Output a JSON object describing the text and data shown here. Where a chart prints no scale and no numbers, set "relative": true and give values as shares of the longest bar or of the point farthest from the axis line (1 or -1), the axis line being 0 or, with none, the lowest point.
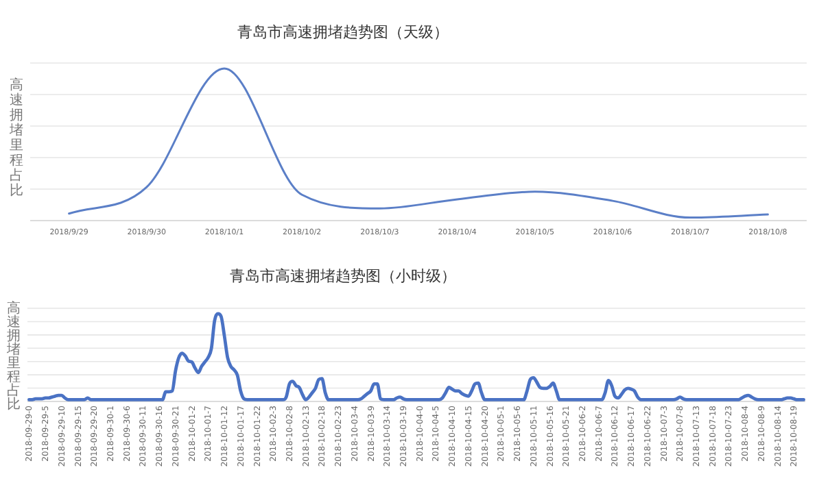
{
  "chart_data": [
    {
      "type": "line",
      "title": "青岛市高速拥堵趋势图（天级）",
      "ylabel": "高速拥堵里程占比",
      "relative": true,
      "grid": "y",
      "color": "#5b7fc7",
      "categories": [
        "2018/9/29",
        "2018/9/30",
        "2018/10/1",
        "2018/10/2",
        "2018/10/3",
        "2018/10/4",
        "2018/10/5",
        "2018/10/6",
        "2018/10/7",
        "2018/10/8"
      ],
      "values": [
        0.046,
        0.22,
        1,
        0.17,
        0.08,
        0.14,
        0.19,
        0.13,
        0.02,
        0.04
      ]
    },
    {
      "type": "line",
      "title": "青岛市高速拥堵趋势图（小时级）",
      "ylabel": "高速拥堵里程占比",
      "relative": true,
      "grid": "y",
      "color": "#4a72c4",
      "categories": [
        "2018-09-29-0",
        null,
        null,
        null,
        null,
        "2018-09-29-5",
        null,
        null,
        null,
        null,
        "2018-09-29-10",
        null,
        null,
        null,
        null,
        "2018-09-29-15",
        null,
        null,
        null,
        null,
        "2018-09-29-20",
        null,
        null,
        null,
        null,
        "2018-09-30-1",
        null,
        null,
        null,
        null,
        "2018-09-30-6",
        null,
        null,
        null,
        null,
        "2018-09-30-11",
        null,
        null,
        null,
        null,
        "2018-09-30-16",
        null,
        null,
        null,
        null,
        "2018-09-30-21",
        null,
        null,
        null,
        null,
        "2018-10-01-2",
        null,
        null,
        null,
        null,
        "2018-10-01-7",
        null,
        null,
        null,
        null,
        "2018-10-01-12",
        null,
        null,
        null,
        null,
        "2018-10-01-17",
        null,
        null,
        null,
        null,
        "2018-10-01-22",
        null,
        null,
        null,
        null,
        "2018-10-02-3",
        null,
        null,
        null,
        null,
        "2018-10-02-8",
        null,
        null,
        null,
        null,
        "2018-10-02-13",
        null,
        null,
        null,
        null,
        "2018-10-02-18",
        null,
        null,
        null,
        null,
        "2018-10-02-23",
        null,
        null,
        null,
        null,
        "2018-10-03-4",
        null,
        null,
        null,
        null,
        "2018-10-03-9",
        null,
        null,
        null,
        null,
        "2018-10-03-14",
        null,
        null,
        null,
        null,
        "2018-10-03-19",
        null,
        null,
        null,
        null,
        "2018-10-04-0",
        null,
        null,
        null,
        null,
        "2018-10-04-5",
        null,
        null,
        null,
        null,
        "2018-10-04-10",
        null,
        null,
        null,
        null,
        "2018-10-04-15",
        null,
        null,
        null,
        null,
        "2018-10-04-20",
        null,
        null,
        null,
        null,
        "2018-10-05-1",
        null,
        null,
        null,
        null,
        "2018-10-05-6",
        null,
        null,
        null,
        null,
        "2018-10-05-11",
        null,
        null,
        null,
        null,
        "2018-10-05-16",
        null,
        null,
        null,
        null,
        "2018-10-05-21",
        null,
        null,
        null,
        null,
        "2018-10-06-2",
        null,
        null,
        null,
        null,
        "2018-10-06-7",
        null,
        null,
        null,
        null,
        "2018-10-06-12",
        null,
        null,
        null,
        null,
        "2018-10-06-17",
        null,
        null,
        null,
        null,
        "2018-10-06-22",
        null,
        null,
        null,
        null,
        "2018-10-07-3",
        null,
        null,
        null,
        null,
        "2018-10-07-8",
        null,
        null,
        null,
        null,
        "2018-10-07-13",
        null,
        null,
        null,
        null,
        "2018-10-07-18",
        null,
        null,
        null,
        null,
        "2018-10-07-23",
        null,
        null,
        null,
        null,
        "2018-10-08-4",
        null,
        null,
        null,
        null,
        "2018-10-08-9",
        null,
        null,
        null,
        null,
        "2018-10-08-14",
        null,
        null,
        null,
        null,
        "2018-10-08-19",
        null,
        null,
        null
      ],
      "values": [
        0.02,
        0.02,
        0.03,
        0.03,
        0.03,
        0.04,
        0.04,
        0.05,
        0.06,
        0.07,
        0.07,
        0.04,
        0.02,
        0.02,
        0.02,
        0.02,
        0.02,
        0.02,
        0.04,
        0.02,
        0.02,
        0.02,
        0.02,
        0.02,
        0.02,
        0.02,
        0.02,
        0.02,
        0.02,
        0.02,
        0.02,
        0.02,
        0.02,
        0.02,
        0.02,
        0.02,
        0.02,
        0.02,
        0.02,
        0.02,
        0.02,
        0.02,
        0.11,
        0.11,
        0.12,
        0.35,
        0.5,
        0.55,
        0.52,
        0.46,
        0.45,
        0.38,
        0.33,
        0.4,
        0.45,
        0.5,
        0.6,
        0.92,
        1,
        0.97,
        0.75,
        0.5,
        0.4,
        0.36,
        0.3,
        0.12,
        0.03,
        0.02,
        0.02,
        0.02,
        0.02,
        0.02,
        0.02,
        0.02,
        0.02,
        0.02,
        0.02,
        0.02,
        0.02,
        0.05,
        0.2,
        0.23,
        0.18,
        0.16,
        0.08,
        0.02,
        0.05,
        0.1,
        0.15,
        0.25,
        0.26,
        0.1,
        0.02,
        0.02,
        0.02,
        0.02,
        0.02,
        0.02,
        0.02,
        0.02,
        0.02,
        0.02,
        0.03,
        0.06,
        0.09,
        0.12,
        0.2,
        0.2,
        0.03,
        0.02,
        0.02,
        0.02,
        0.02,
        0.04,
        0.05,
        0.03,
        0.02,
        0.02,
        0.02,
        0.02,
        0.02,
        0.02,
        0.02,
        0.02,
        0.02,
        0.02,
        0.02,
        0.04,
        0.1,
        0.16,
        0.14,
        0.12,
        0.12,
        0.09,
        0.07,
        0.06,
        0.12,
        0.2,
        0.21,
        0.1,
        0.02,
        0.02,
        0.02,
        0.02,
        0.02,
        0.02,
        0.02,
        0.02,
        0.02,
        0.02,
        0.02,
        0.02,
        0.02,
        0.12,
        0.25,
        0.27,
        0.22,
        0.16,
        0.15,
        0.15,
        0.17,
        0.21,
        0.12,
        0.02,
        0.02,
        0.02,
        0.02,
        0.02,
        0.02,
        0.02,
        0.02,
        0.02,
        0.02,
        0.02,
        0.02,
        0.02,
        0.02,
        0.1,
        0.24,
        0.18,
        0.06,
        0.04,
        0.08,
        0.13,
        0.15,
        0.14,
        0.12,
        0.05,
        0.02,
        0.02,
        0.02,
        0.02,
        0.02,
        0.02,
        0.02,
        0.02,
        0.02,
        0.02,
        0.02,
        0.03,
        0.05,
        0.03,
        0.02,
        0.02,
        0.02,
        0.02,
        0.02,
        0.02,
        0.02,
        0.02,
        0.02,
        0.02,
        0.02,
        0.02,
        0.02,
        0.02,
        0.02,
        0.02,
        0.02,
        0.04,
        0.06,
        0.07,
        0.05,
        0.03,
        0.02,
        0.02,
        0.02,
        0.02,
        0.02,
        0.02,
        0.02,
        0.02,
        0.03,
        0.04,
        0.04,
        0.03,
        0.02,
        0.02,
        0.02
      ]
    }
  ]
}
